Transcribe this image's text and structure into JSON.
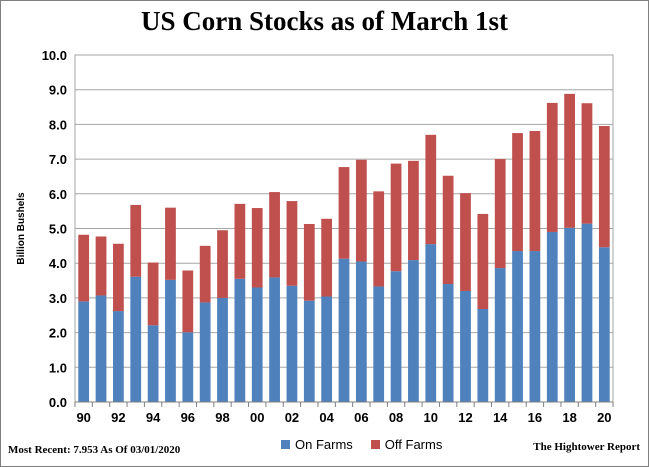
{
  "chart_data": {
    "type": "bar",
    "stacked": true,
    "title": "US Corn Stocks as of March 1st",
    "ylabel": "Billion Bushels",
    "xlabel": "",
    "ylim": [
      0,
      10
    ],
    "yticks": [
      "0.0",
      "1.0",
      "2.0",
      "3.0",
      "4.0",
      "5.0",
      "6.0",
      "7.0",
      "8.0",
      "9.0",
      "10.0"
    ],
    "categories": [
      "1990",
      "1991",
      "1992",
      "1993",
      "1994",
      "1995",
      "1996",
      "1997",
      "1998",
      "1999",
      "2000",
      "2001",
      "2002",
      "2003",
      "2004",
      "2005",
      "2006",
      "2007",
      "2008",
      "2009",
      "2010",
      "2011",
      "2012",
      "2013",
      "2014",
      "2015",
      "2016",
      "2017",
      "2018",
      "2019",
      "2020"
    ],
    "xtick_labels": [
      "90",
      "92",
      "94",
      "96",
      "98",
      "00",
      "02",
      "04",
      "06",
      "08",
      "10",
      "12",
      "14",
      "16",
      "18",
      "20"
    ],
    "grid": true,
    "legend_position": "bottom",
    "series": [
      {
        "name": "On Farms",
        "color": "#4f81bd",
        "values": [
          2.9,
          3.07,
          2.62,
          3.61,
          2.21,
          3.52,
          2.01,
          2.87,
          3.0,
          3.55,
          3.3,
          3.59,
          3.35,
          2.92,
          3.04,
          4.13,
          4.05,
          3.33,
          3.77,
          4.09,
          4.55,
          3.4,
          3.2,
          2.68,
          3.86,
          4.35,
          4.35,
          4.9,
          5.02,
          5.14,
          4.46
        ]
      },
      {
        "name": "Off Farms",
        "color": "#c0504d",
        "values": [
          1.92,
          1.7,
          1.94,
          2.07,
          1.81,
          2.08,
          1.78,
          1.63,
          1.95,
          2.16,
          2.29,
          2.46,
          2.44,
          2.21,
          2.24,
          2.64,
          2.93,
          2.74,
          3.1,
          2.86,
          3.15,
          3.12,
          2.82,
          2.74,
          3.14,
          3.4,
          3.46,
          3.72,
          3.86,
          3.47,
          3.493
        ]
      }
    ]
  },
  "footer": {
    "most_recent": "Most Recent: 7.953 As Of 03/01/2020",
    "source": "The Hightower Report"
  }
}
